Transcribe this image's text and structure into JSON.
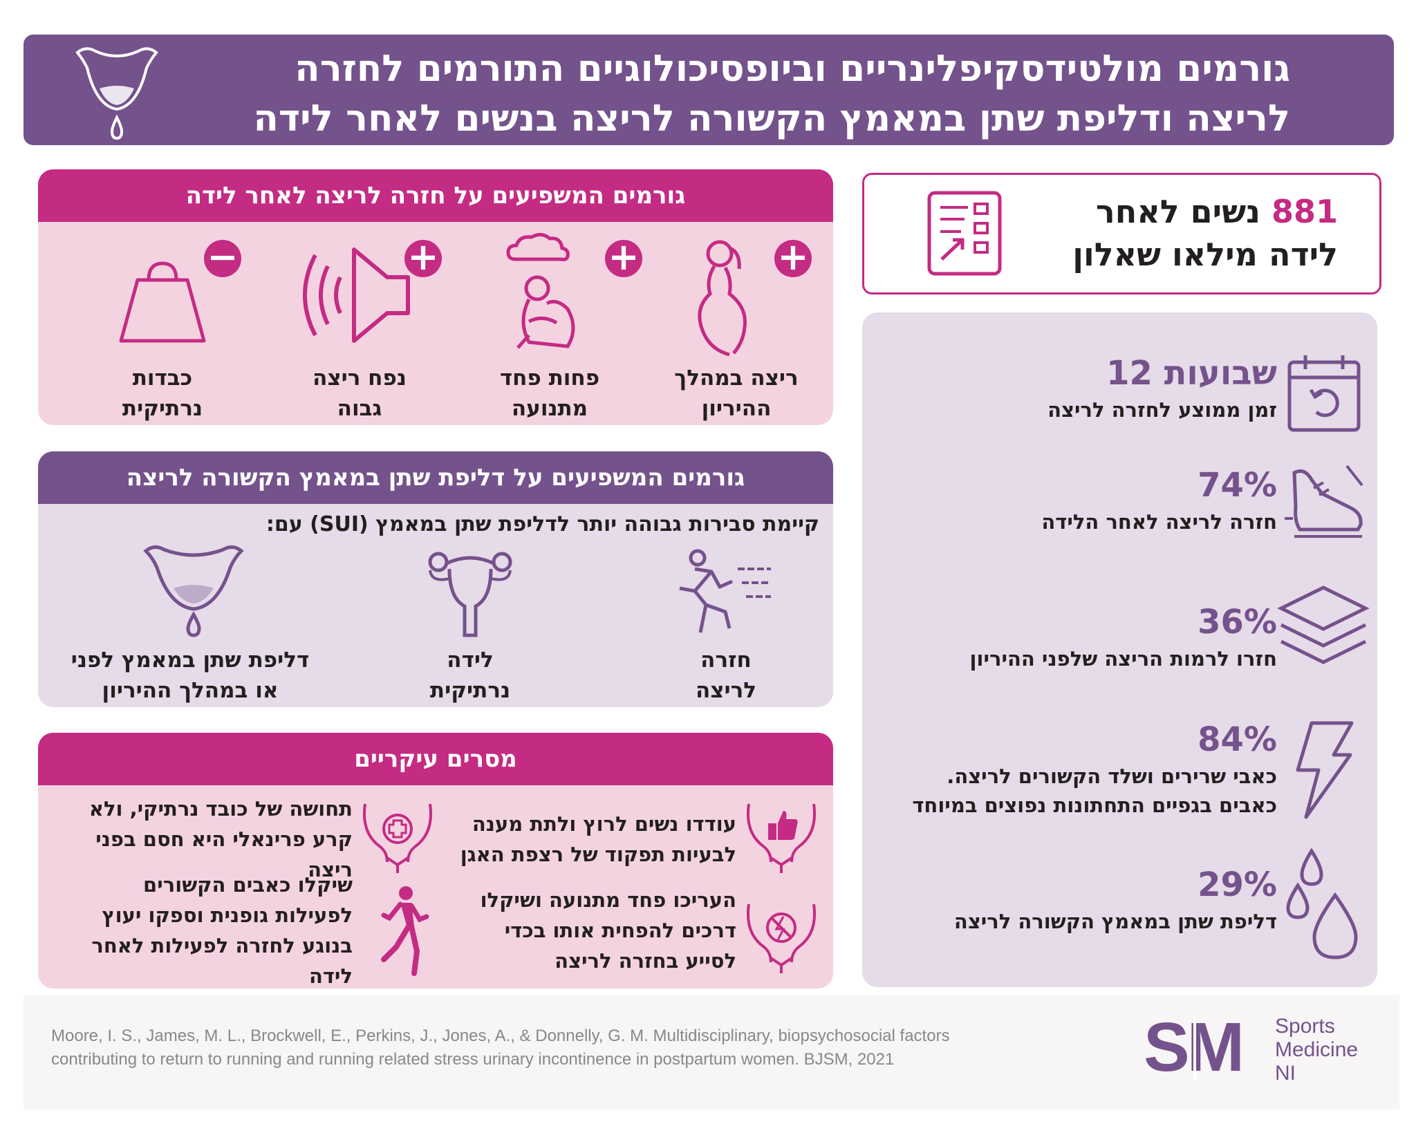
{
  "header": {
    "title_line1": "גורמים מולטידסקיפלינריים וביופסיכולוגיים התורמים לחזרה",
    "title_line2": "לריצה ודליפת שתן במאמץ הקשורה לריצה בנשים לאחר לידה"
  },
  "survey": {
    "number": "881",
    "text_line1": "נשים לאחר",
    "text_line2": "לידה מילאו שאלון"
  },
  "rtr_factors": {
    "title": "גורמים המשפיעים על חזרה לריצה לאחר לידה",
    "items": [
      {
        "sign": "+",
        "label1": "ריצה במהלך",
        "label2": "ההיריון",
        "icon": "pregnant-woman-icon"
      },
      {
        "sign": "+",
        "label1": "פחות פחד",
        "label2": "מתנועה",
        "icon": "anxious-person-icon"
      },
      {
        "sign": "+",
        "label1": "נפח ריצה",
        "label2": "גבוה",
        "icon": "volume-speaker-icon"
      },
      {
        "sign": "−",
        "label1": "כבדות",
        "label2": "נרתיקית",
        "icon": "weight-icon"
      }
    ]
  },
  "sui_factors": {
    "title": "גורמים המשפיעים על דליפת שתן במאמץ הקשורה לריצה",
    "intro": "קיימת סבירות גבוהה יותר לדליפת שתן במאמץ (SUI) עם:",
    "items": [
      {
        "label1": "חזרה",
        "label2": "לריצה",
        "icon": "running-person-icon"
      },
      {
        "label1": "לידה",
        "label2": "נרתיקית",
        "icon": "uterus-icon"
      },
      {
        "label1": "דליפת שתן במאמץ לפני",
        "label2": "או במהלך ההיריון",
        "icon": "bladder-leak-icon"
      }
    ]
  },
  "barriers": {
    "title": "מסרים עיקריים",
    "items": [
      {
        "text": "עודדו נשים לרוץ ולתת מענה לבעיות תפקוד של רצפת האגן",
        "icon": "pelvis-thumbs-up-icon"
      },
      {
        "text": "תחושה של כובד נרתיקי, ולא קרע פרינאלי היא חסם בפני ריצה",
        "icon": "pelvis-medical-icon"
      },
      {
        "text": "העריכו פחד מתנועה ושיקלו דרכים להפחית אותו בכדי לסייע בחזרה לריצה",
        "icon": "pelvis-no-fear-icon"
      },
      {
        "text": "שיקלו כאבים הקשורים לפעילות גופנית וספקו יעוץ בנוגע לחזרה לפעילות לאחר לידה",
        "icon": "runner-woman-icon"
      }
    ]
  },
  "stats": [
    {
      "value": "12 שבועות",
      "label": "זמן ממוצע לחזרה לריצה",
      "icon": "calendar-icon"
    },
    {
      "value": "74%",
      "label": "חזרה לריצה לאחר הלידה",
      "icon": "running-shoe-icon"
    },
    {
      "value": "36%",
      "label": "חזרו לרמות הריצה שלפני ההיריון",
      "icon": "layers-icon"
    },
    {
      "value": "84%",
      "label": "כאבי שרירים ושלד הקשורים לריצה.",
      "label2": "כאבים בגפיים התחתונות נפוצים במיוחד",
      "icon": "lightning-icon"
    },
    {
      "value": "29%",
      "label": "דליפת שתן במאמץ הקשורה לריצה",
      "icon": "droplets-icon"
    }
  ],
  "footer": {
    "citation_line1": "Moore, I. S., James, M. L., Brockwell, E., Perkins, J., Jones, A., & Donnelly, G. M.  Multidisciplinary, biopsychosocial factors",
    "citation_line2": "contributing to return to running and running related stress urinary incontinence in postpartum women. BJSM, 2021",
    "logo_letters": "SM",
    "logo_line1": "Sports",
    "logo_line2": "Medicine",
    "logo_line3": "NI"
  },
  "colors": {
    "purple": "#74528c",
    "magenta": "#c42b83",
    "pink_bg": "#f4d3e1",
    "lavender_bg": "#e6dbe8"
  }
}
